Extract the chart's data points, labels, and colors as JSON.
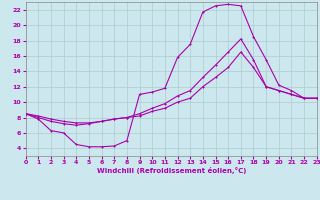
{
  "xlabel": "Windchill (Refroidissement éolien,°C)",
  "background_color": "#cce8ee",
  "grid_color": "#aacccc",
  "line_color": "#aa00aa",
  "xlim": [
    0,
    23
  ],
  "ylim": [
    3,
    23
  ],
  "xticks": [
    0,
    1,
    2,
    3,
    4,
    5,
    6,
    7,
    8,
    9,
    10,
    11,
    12,
    13,
    14,
    15,
    16,
    17,
    18,
    19,
    20,
    21,
    22,
    23
  ],
  "yticks": [
    4,
    6,
    8,
    10,
    12,
    14,
    16,
    18,
    20,
    22
  ],
  "line1_x": [
    0,
    1,
    2,
    3,
    4,
    5,
    6,
    7,
    8,
    9,
    10,
    11,
    12,
    13,
    14,
    15,
    16,
    17,
    18,
    19,
    20,
    21,
    22,
    23
  ],
  "line1_y": [
    8.5,
    7.8,
    6.3,
    6.0,
    4.5,
    4.2,
    4.2,
    4.3,
    5.0,
    11.0,
    11.3,
    11.8,
    15.8,
    17.5,
    21.7,
    22.5,
    22.7,
    22.5,
    18.5,
    15.5,
    12.2,
    11.5,
    10.5,
    10.5
  ],
  "line2_x": [
    0,
    1,
    2,
    3,
    4,
    5,
    6,
    7,
    8,
    9,
    10,
    11,
    12,
    13,
    14,
    15,
    16,
    17,
    18,
    19,
    20,
    21,
    22,
    23
  ],
  "line2_y": [
    8.5,
    8.2,
    7.8,
    7.5,
    7.3,
    7.3,
    7.5,
    7.8,
    8.0,
    8.5,
    9.2,
    9.8,
    10.8,
    11.5,
    13.2,
    14.8,
    16.5,
    18.2,
    15.5,
    12.0,
    11.5,
    11.0,
    10.5,
    10.5
  ],
  "line3_x": [
    0,
    1,
    2,
    3,
    4,
    5,
    6,
    7,
    8,
    9,
    10,
    11,
    12,
    13,
    14,
    15,
    16,
    17,
    18,
    19,
    20,
    21,
    22,
    23
  ],
  "line3_y": [
    8.5,
    8.0,
    7.5,
    7.2,
    7.0,
    7.2,
    7.5,
    7.8,
    8.0,
    8.2,
    8.8,
    9.2,
    10.0,
    10.5,
    12.0,
    13.2,
    14.5,
    16.5,
    14.5,
    12.0,
    11.5,
    11.0,
    10.5,
    10.5
  ]
}
